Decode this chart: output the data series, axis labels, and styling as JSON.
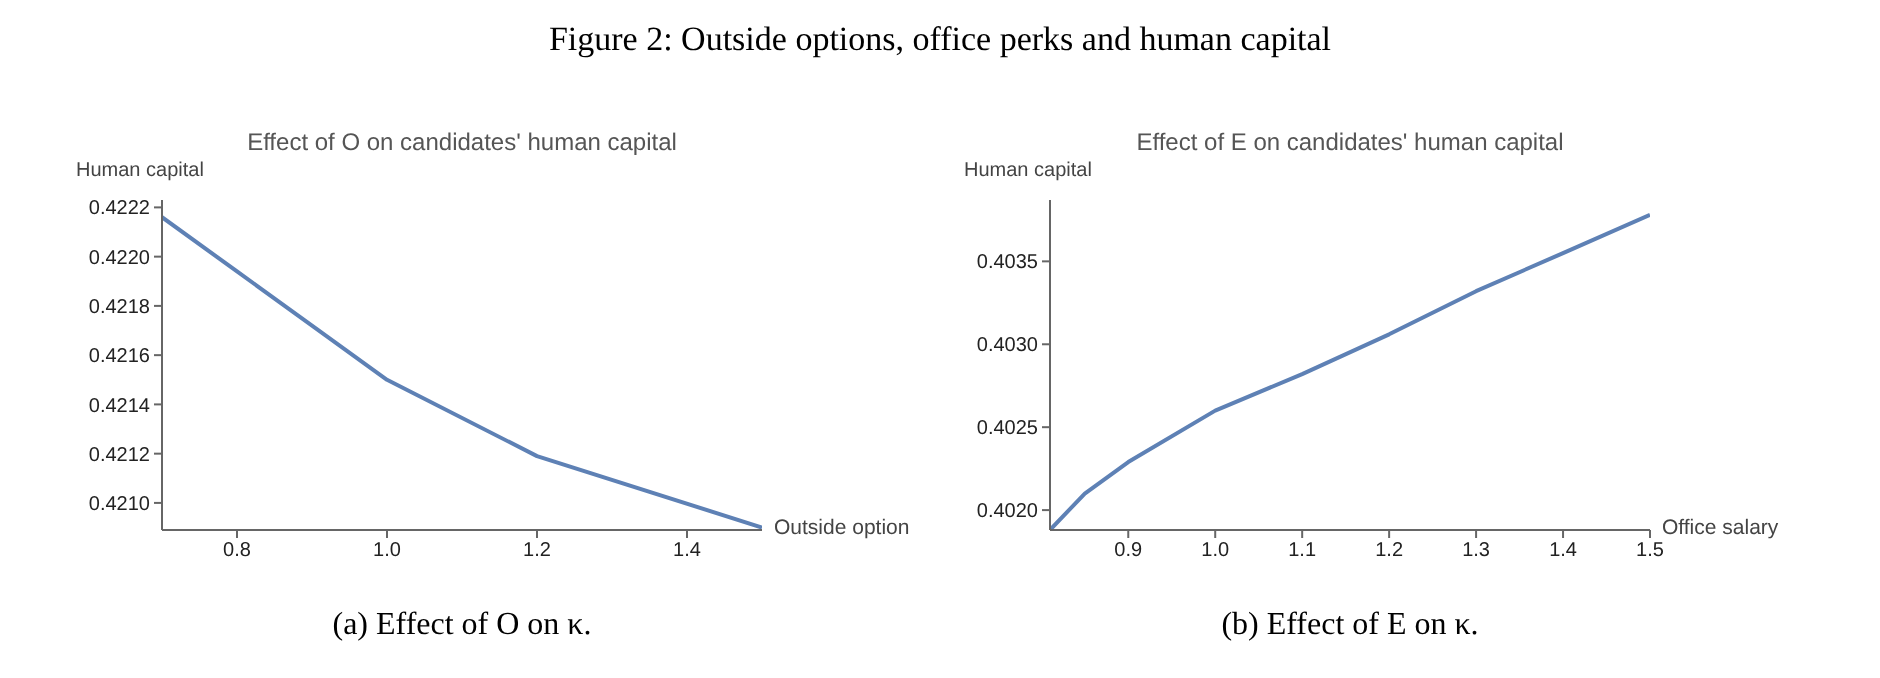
{
  "chart_data": [
    {
      "type": "line",
      "title": "Effect of O on candidates' human capital",
      "xlabel": "Outside option",
      "ylabel": "Human capital",
      "annotations": [
        "Figure 2: Outside options, office perks and human capital",
        "(a) Effect of O on κ."
      ],
      "series": [
        {
          "color": "#5e81b5",
          "x": [
            0.7,
            0.8,
            0.9,
            1.0,
            1.2,
            1.5
          ],
          "values": [
            0.42216,
            0.42194,
            0.42172,
            0.4215,
            0.42119,
            0.4209
          ]
        }
      ],
      "xlim": [
        0.7,
        1.5
      ],
      "xticks": [
        0.8,
        {
          "value": 1,
          "label": "1.0"
        },
        1.2,
        1.4
      ],
      "ylim": [
        0.42089,
        0.42223
      ],
      "yticks": [
        {
          "value": 0.421,
          "label": "0.4210"
        },
        0.4212,
        0.4214,
        0.4216,
        0.4218,
        {
          "value": 0.422,
          "label": "0.4220"
        },
        0.4222
      ],
      "grid": false,
      "legend": false,
      "marker": "none",
      "line_style": "solid"
    },
    {
      "type": "line",
      "title": "Effect of E on candidates' human capital",
      "xlabel": "Office salary",
      "ylabel": "Human capital",
      "annotations": [
        "(b) Effect of E on κ."
      ],
      "series": [
        {
          "color": "#5e81b5",
          "x": [
            0.81,
            0.85,
            0.9,
            1.0,
            1.1,
            1.2,
            1.3,
            1.4,
            1.5
          ],
          "values": [
            0.40188,
            0.4021,
            0.40229,
            0.4026,
            0.40282,
            0.40306,
            0.40332,
            0.40355,
            0.40378
          ]
        }
      ],
      "xlim": [
        0.81,
        1.5
      ],
      "xticks": [
        0.9,
        {
          "value": 1,
          "label": "1.0"
        },
        1.1,
        1.2,
        1.3,
        1.4,
        1.5
      ],
      "ylim": [
        0.40188,
        0.40387
      ],
      "yticks": [
        {
          "value": 0.402,
          "label": "0.4020"
        },
        0.4025,
        {
          "value": 0.403,
          "label": "0.4030"
        },
        0.4035
      ],
      "grid": false,
      "legend": false,
      "marker": "none",
      "line_style": "solid"
    }
  ]
}
